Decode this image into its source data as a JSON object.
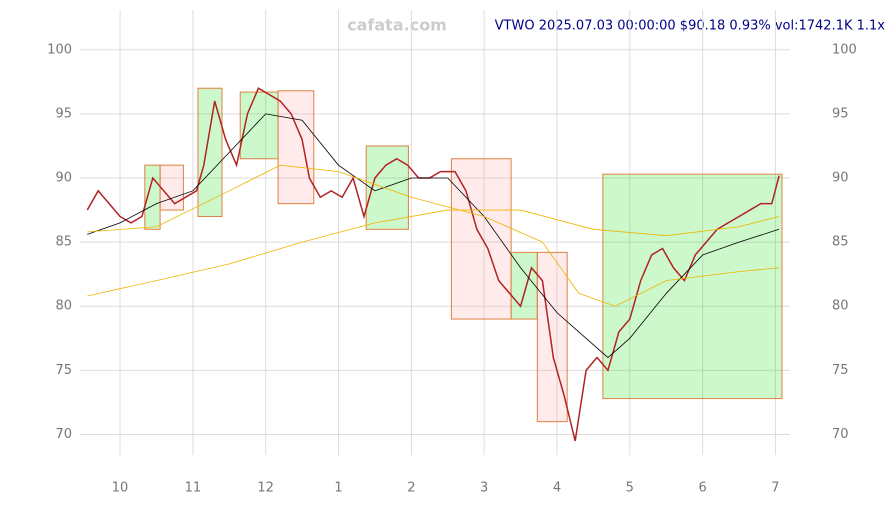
{
  "chart_data": {
    "type": "line",
    "title": "VTWO 2025.07.03 00:00:00 $90.18 0.93% vol:1742.1K 1.1x",
    "watermark": "cafata.com",
    "xlim": [
      9.45,
      19.2
    ],
    "ylim": [
      68.4,
      103.1
    ],
    "xticks": [
      {
        "value": 10,
        "label": "10"
      },
      {
        "value": 11,
        "label": "11"
      },
      {
        "value": 12,
        "label": "12"
      },
      {
        "value": 13,
        "label": "1"
      },
      {
        "value": 14,
        "label": "2"
      },
      {
        "value": 15,
        "label": "3"
      },
      {
        "value": 16,
        "label": "4"
      },
      {
        "value": 17,
        "label": "5"
      },
      {
        "value": 18,
        "label": "6"
      },
      {
        "value": 19,
        "label": "7"
      }
    ],
    "yticks": [
      70,
      75,
      80,
      85,
      90,
      95,
      100
    ],
    "grid": true,
    "series": [
      {
        "name": "close",
        "color": "#b22222",
        "x": [
          9.55,
          9.7,
          9.85,
          10.0,
          10.15,
          10.3,
          10.45,
          10.6,
          10.75,
          10.9,
          11.05,
          11.15,
          11.3,
          11.45,
          11.6,
          11.75,
          11.9,
          12.05,
          12.2,
          12.35,
          12.5,
          12.6,
          12.75,
          12.9,
          13.05,
          13.2,
          13.35,
          13.5,
          13.65,
          13.8,
          13.95,
          14.1,
          14.25,
          14.4,
          14.6,
          14.75,
          14.9,
          15.05,
          15.2,
          15.35,
          15.5,
          15.65,
          15.8,
          15.95,
          16.1,
          16.25,
          16.4,
          16.55,
          16.7,
          16.85,
          17.0,
          17.15,
          17.3,
          17.45,
          17.6,
          17.75,
          17.9,
          18.05,
          18.2,
          18.35,
          18.5,
          18.65,
          18.8,
          18.95,
          19.05
        ],
        "values": [
          87.5,
          89,
          88,
          87,
          86.5,
          87,
          90,
          89,
          88,
          88.5,
          89,
          91,
          96,
          93,
          91,
          95,
          97,
          96.5,
          96,
          95,
          93,
          90,
          88.5,
          89,
          88.5,
          90,
          87,
          90,
          91,
          91.5,
          91,
          90,
          90,
          90.5,
          90.5,
          89,
          86,
          84.5,
          82,
          81,
          80,
          83,
          82,
          76,
          73,
          69.5,
          75,
          76,
          75,
          78,
          79,
          82,
          84,
          84.5,
          83,
          82,
          84,
          85,
          86,
          86.5,
          87,
          87.5,
          88,
          88,
          90.18
        ]
      },
      {
        "name": "ma-short",
        "color": "#000000",
        "x": [
          9.55,
          10,
          10.5,
          11,
          11.5,
          12,
          12.5,
          13,
          13.5,
          14,
          14.5,
          15,
          15.5,
          16,
          16.3,
          16.7,
          17,
          17.5,
          18,
          18.5,
          19.05
        ],
        "values": [
          85.6,
          86.5,
          88,
          89,
          92,
          95,
          94.5,
          91,
          89,
          90,
          90,
          87,
          83,
          79.5,
          78,
          76,
          77.5,
          81,
          84,
          85,
          86
        ]
      },
      {
        "name": "ma-mid",
        "color": "#f0b400",
        "x": [
          9.55,
          10.5,
          11.5,
          12.2,
          13,
          14,
          15,
          15.8,
          16.3,
          16.8,
          17.5,
          18.5,
          19.05
        ],
        "values": [
          85.8,
          86.2,
          89,
          91,
          90.5,
          88.5,
          87,
          85,
          81,
          80,
          82,
          82.7,
          83
        ]
      },
      {
        "name": "ma-long",
        "color": "#f0b400",
        "x": [
          9.55,
          10.5,
          11.5,
          12.5,
          13.5,
          14.5,
          15.5,
          16.5,
          17.5,
          18.5,
          19.05
        ],
        "values": [
          80.8,
          82,
          83.3,
          85,
          86.5,
          87.5,
          87.5,
          86,
          85.5,
          86.2,
          87
        ]
      }
    ],
    "boxes": [
      {
        "x": [
          10.34,
          10.55
        ],
        "y": [
          86,
          91
        ],
        "color": "#00dd00"
      },
      {
        "x": [
          10.55,
          10.87
        ],
        "y": [
          87.5,
          91
        ],
        "color": "#ff9999"
      },
      {
        "x": [
          11.07,
          11.4
        ],
        "y": [
          87,
          97
        ],
        "color": "#00dd00"
      },
      {
        "x": [
          11.65,
          12.17
        ],
        "y": [
          91.5,
          96.7
        ],
        "color": "#00dd00"
      },
      {
        "x": [
          12.17,
          12.66
        ],
        "y": [
          88,
          96.8
        ],
        "color": "#ff9999"
      },
      {
        "x": [
          13.38,
          13.96
        ],
        "y": [
          86,
          92.5
        ],
        "color": "#00dd00"
      },
      {
        "x": [
          14.55,
          15.37
        ],
        "y": [
          79,
          91.5
        ],
        "color": "#ff9999"
      },
      {
        "x": [
          15.37,
          15.73
        ],
        "y": [
          79,
          84.2
        ],
        "color": "#00dd00"
      },
      {
        "x": [
          15.73,
          16.14
        ],
        "y": [
          71,
          84.2
        ],
        "color": "#ff9999"
      },
      {
        "x": [
          16.63,
          19.09
        ],
        "y": [
          72.8,
          90.3
        ],
        "color": "#00dd00"
      }
    ]
  }
}
